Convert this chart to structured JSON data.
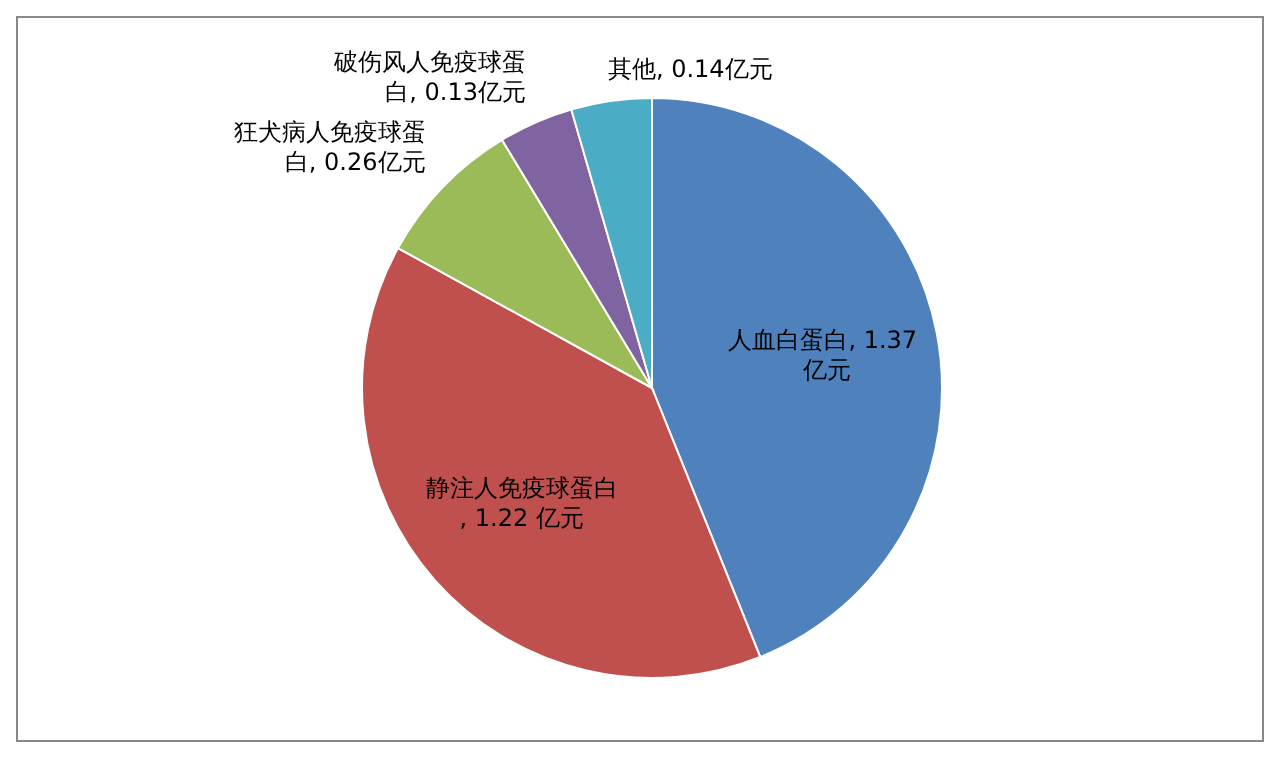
{
  "chart_data": {
    "type": "pie",
    "categories": [
      "人血白蛋白",
      "静注人免疫球蛋白",
      "狂犬病人免疫球蛋白",
      "破伤风人免疫球蛋白",
      "其他"
    ],
    "values": [
      1.37,
      1.22,
      0.26,
      0.13,
      0.14
    ],
    "value_labels": [
      ", 1.37 亿元",
      ", 1.22 亿元",
      ", 0.26亿元",
      ", 0.13亿元",
      ", 0.14亿元"
    ],
    "colors": [
      "#4f81bd",
      "#c0504d",
      "#9bbb59",
      "#8064a2",
      "#4bacc6"
    ],
    "legend": false
  }
}
